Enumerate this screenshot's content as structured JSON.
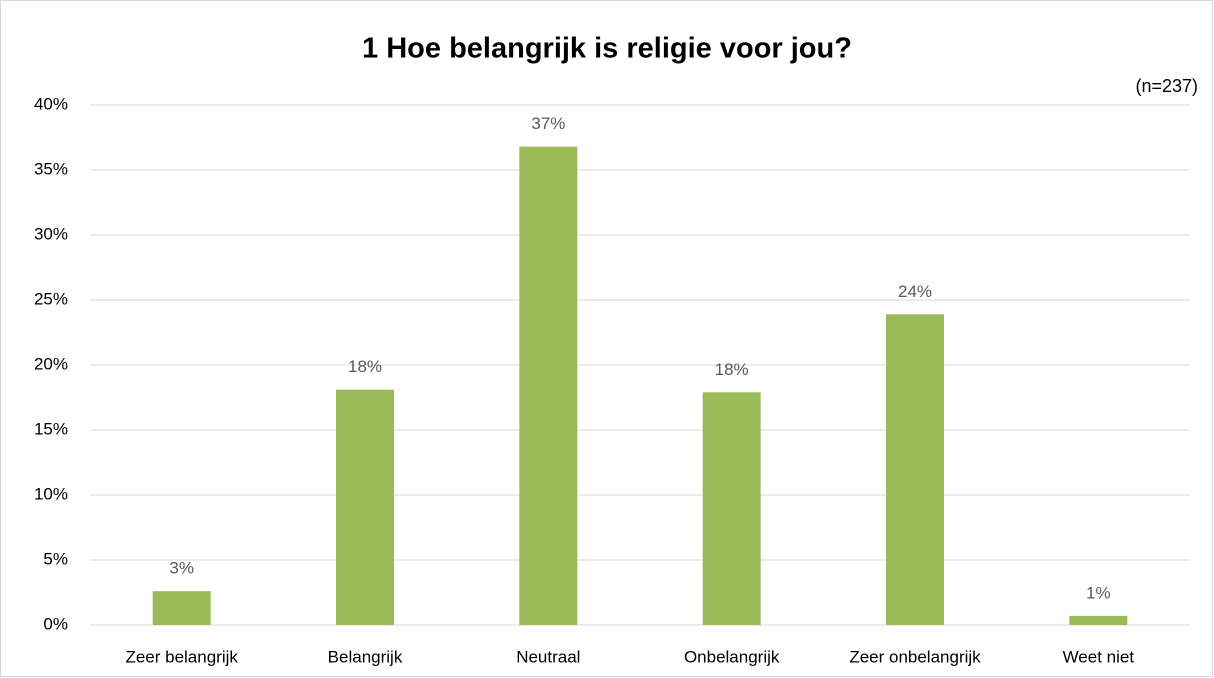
{
  "chart_data": {
    "type": "bar",
    "title": "1 Hoe belangrijk is religie voor jou?",
    "annotation": "(n=237)",
    "categories": [
      "Zeer belangrijk",
      "Belangrijk",
      "Neutraal",
      "Onbelangrijk",
      "Zeer onbelangrijk",
      "Weet niet"
    ],
    "values": [
      2.6,
      18.1,
      36.8,
      17.9,
      23.9,
      0.7
    ],
    "value_labels": [
      "3%",
      "18%",
      "37%",
      "18%",
      "24%",
      "1%"
    ],
    "color": "#9bbb59",
    "ylim": [
      0,
      40
    ],
    "yticks": [
      {
        "value": 0,
        "label": "0%"
      },
      {
        "value": 5,
        "label": "5%"
      },
      {
        "value": 10,
        "label": "10%"
      },
      {
        "value": 15,
        "label": "15%"
      },
      {
        "value": 20,
        "label": "20%"
      },
      {
        "value": 25,
        "label": "25%"
      },
      {
        "value": 30,
        "label": "30%"
      },
      {
        "value": 35,
        "label": "35%"
      },
      {
        "value": 40,
        "label": "40%"
      }
    ],
    "grid": true
  }
}
